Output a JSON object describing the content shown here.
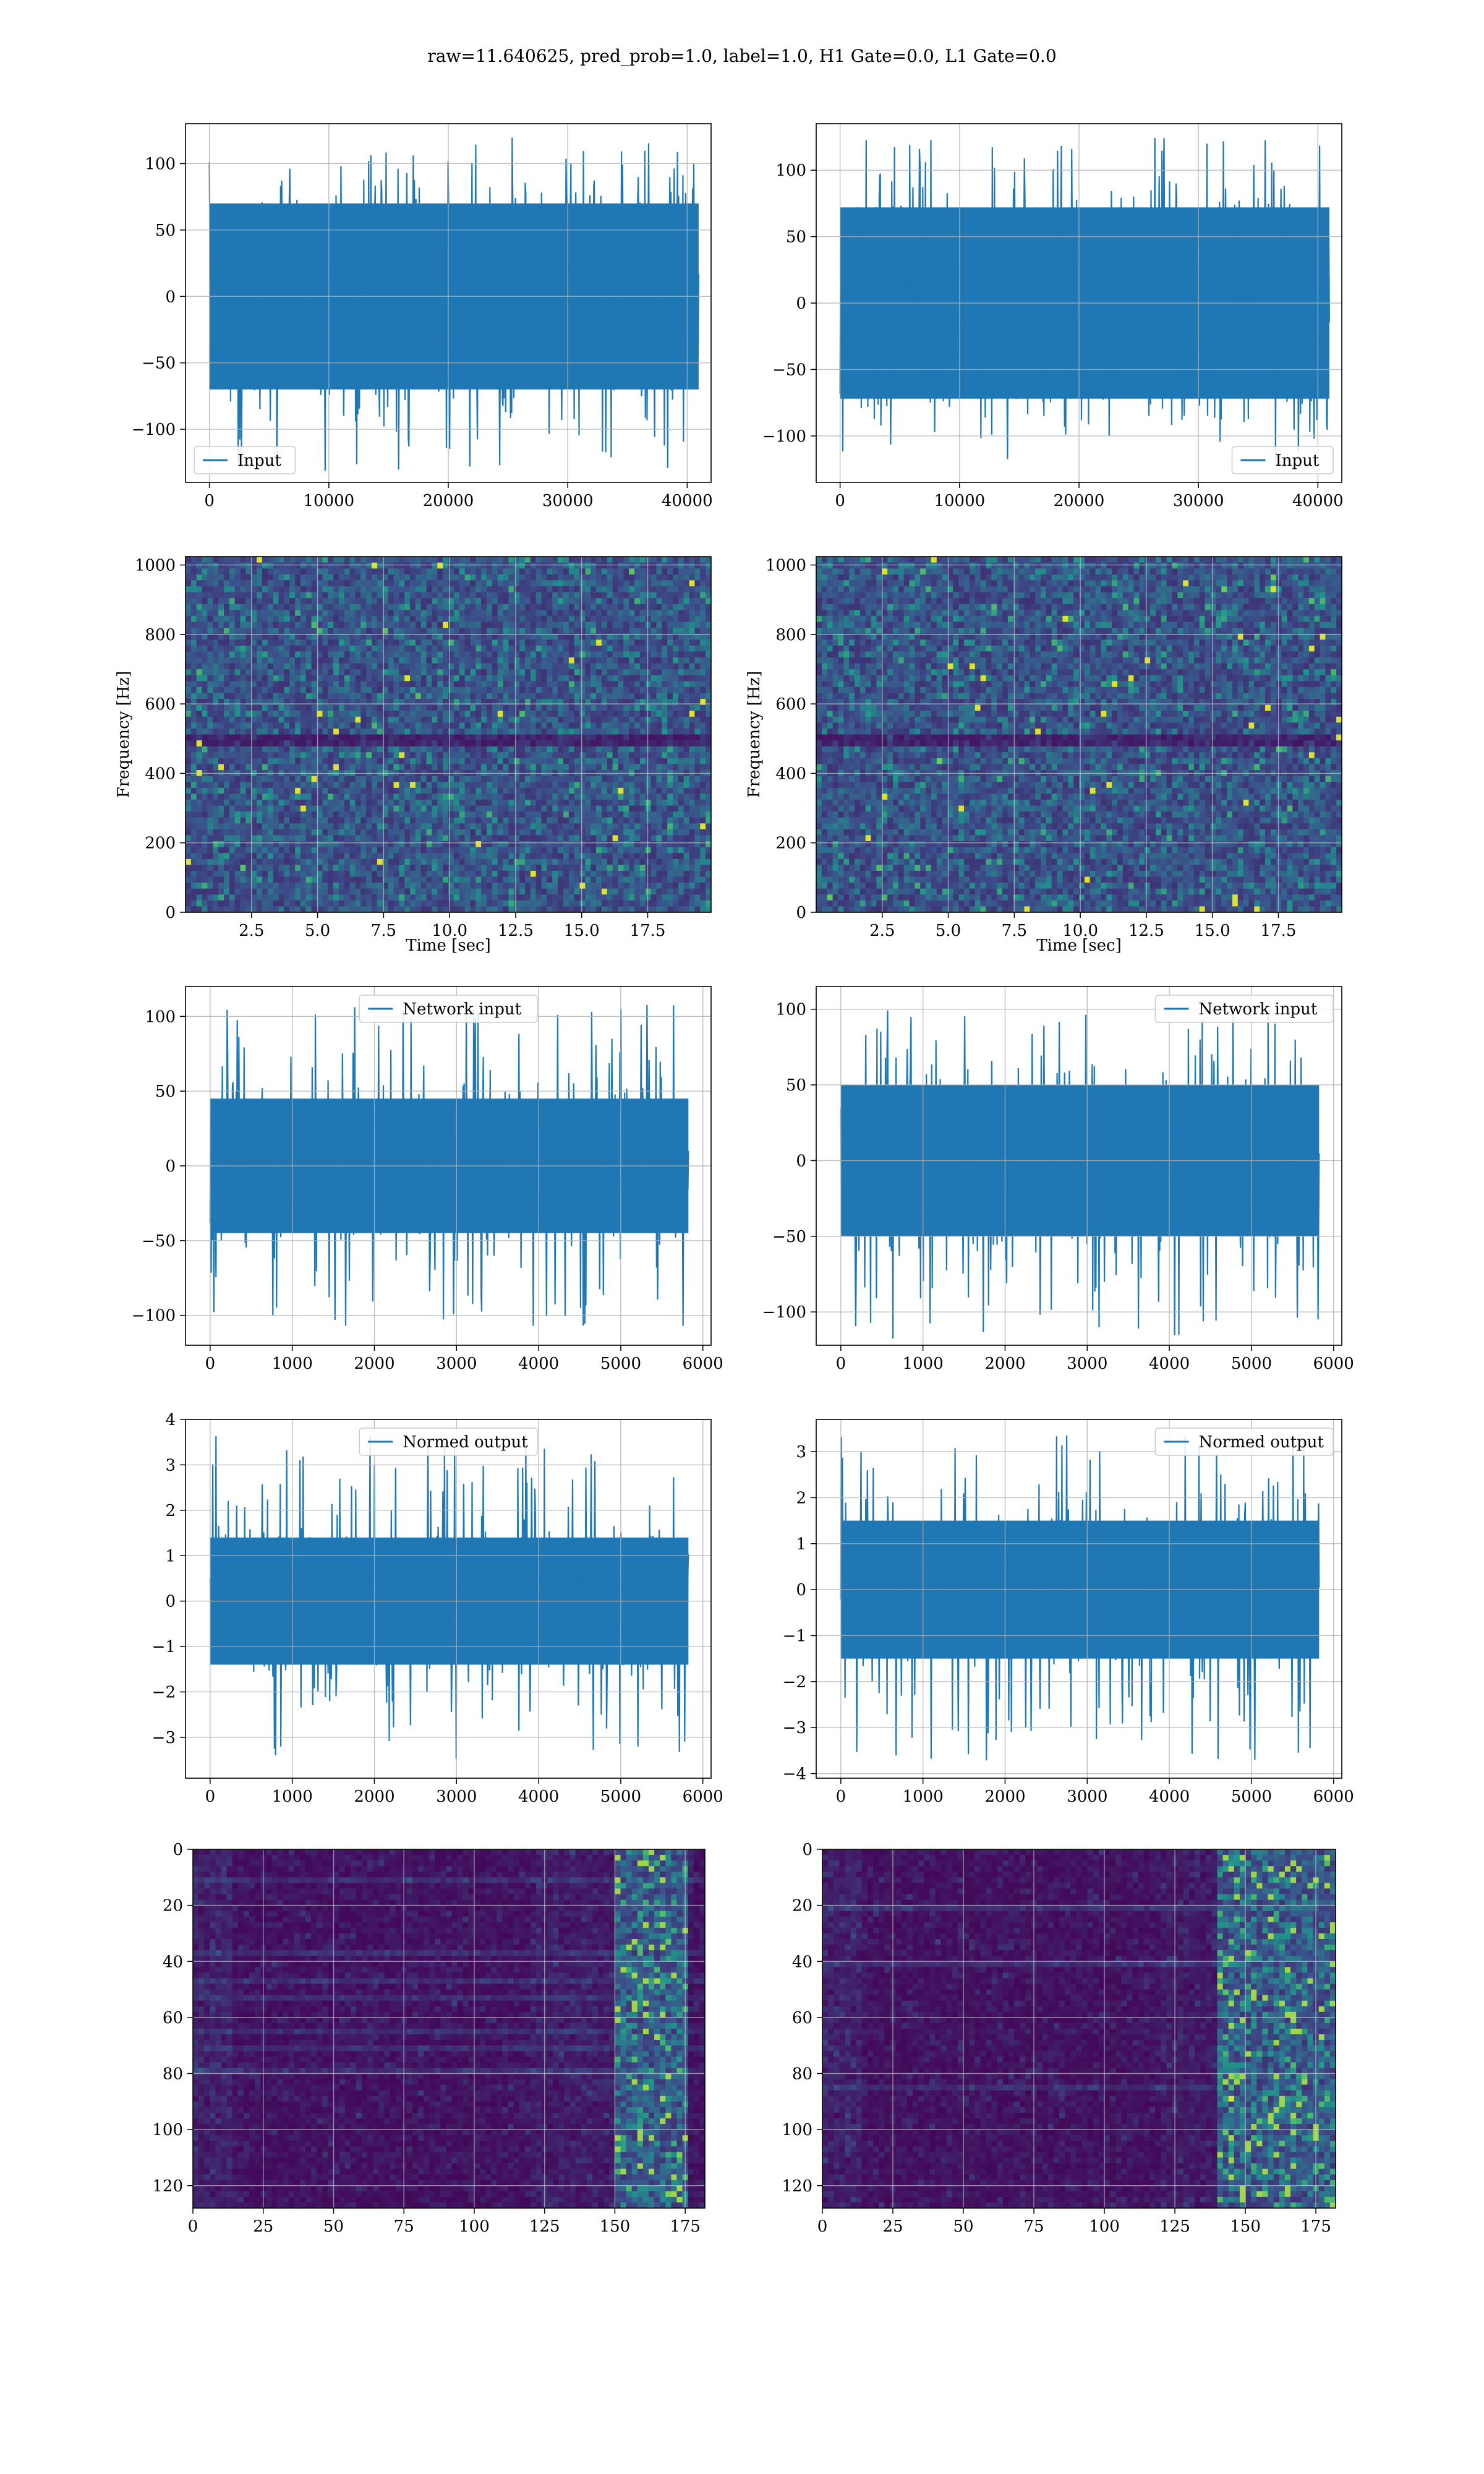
{
  "figure": {
    "suptitle": "raw=11.640625, pred_prob=1.0, label=1.0, H1 Gate=0.0, L1 Gate=0.0"
  },
  "colors": {
    "series": "#1f77b4",
    "axes_edge": "#000000",
    "grid": "#b0b0b0",
    "viridis_dark": "#440154",
    "viridis_mid": "#21918c",
    "viridis_bright": "#fde725"
  },
  "chart_data": [
    {
      "id": "h1-input",
      "type": "line",
      "panel": "row1-left",
      "legend": {
        "label": "Input",
        "loc": "lower left"
      },
      "xlim": [
        -2000,
        42000
      ],
      "ylim": [
        -140,
        130
      ],
      "xticks": [
        0,
        10000,
        20000,
        30000,
        40000
      ],
      "xticklabels": [
        "0",
        "10000",
        "20000",
        "30000",
        "40000"
      ],
      "yticks": [
        -100,
        -50,
        0,
        50,
        100
      ],
      "yticklabels": [
        "−100",
        "−50",
        "0",
        "50",
        "100"
      ],
      "series": [
        {
          "x_range": [
            0,
            40960
          ],
          "core_band": [
            -70,
            70
          ],
          "peak_range": [
            -132,
            120
          ]
        }
      ],
      "grid": true
    },
    {
      "id": "l1-input",
      "type": "line",
      "panel": "row1-right",
      "legend": {
        "label": "Input",
        "loc": "lower right"
      },
      "xlim": [
        -2000,
        42000
      ],
      "ylim": [
        -135,
        135
      ],
      "xticks": [
        0,
        10000,
        20000,
        30000,
        40000
      ],
      "xticklabels": [
        "0",
        "10000",
        "20000",
        "30000",
        "40000"
      ],
      "yticks": [
        -100,
        -50,
        0,
        50,
        100
      ],
      "yticklabels": [
        "−100",
        "−50",
        "0",
        "50",
        "100"
      ],
      "series": [
        {
          "x_range": [
            0,
            40960
          ],
          "core_band": [
            -72,
            72
          ],
          "peak_range": [
            -120,
            125
          ]
        }
      ],
      "grid": true
    },
    {
      "id": "h1-spectrogram",
      "type": "heatmap",
      "panel": "row2-left",
      "xlabel": "Time [sec]",
      "ylabel": "Frequency [Hz]",
      "xlim": [
        0,
        19.9
      ],
      "ylim": [
        0,
        1024
      ],
      "xticks": [
        2.5,
        5.0,
        7.5,
        10.0,
        12.5,
        15.0,
        17.5
      ],
      "xticklabels": [
        "2.5",
        "5.0",
        "7.5",
        "10.0",
        "12.5",
        "15.0",
        "17.5"
      ],
      "yticks": [
        0,
        200,
        400,
        600,
        800,
        1000
      ],
      "yticklabels": [
        "0",
        "200",
        "400",
        "600",
        "800",
        "1000"
      ],
      "colormap": "viridis",
      "dark_band_hz": 500,
      "grid": true
    },
    {
      "id": "l1-spectrogram",
      "type": "heatmap",
      "panel": "row2-right",
      "xlabel": "Time [sec]",
      "ylabel": "Frequency [Hz]",
      "xlim": [
        0,
        19.9
      ],
      "ylim": [
        0,
        1024
      ],
      "xticks": [
        2.5,
        5.0,
        7.5,
        10.0,
        12.5,
        15.0,
        17.5
      ],
      "xticklabels": [
        "2.5",
        "5.0",
        "7.5",
        "10.0",
        "12.5",
        "15.0",
        "17.5"
      ],
      "yticks": [
        0,
        200,
        400,
        600,
        800,
        1000
      ],
      "yticklabels": [
        "0",
        "200",
        "400",
        "600",
        "800",
        "1000"
      ],
      "colormap": "viridis",
      "dark_band_hz": 500,
      "grid": true
    },
    {
      "id": "h1-network-input",
      "type": "line",
      "panel": "row3-left",
      "legend": {
        "label": "Network input",
        "loc": "upper center"
      },
      "xlim": [
        -300,
        6100
      ],
      "ylim": [
        -120,
        120
      ],
      "xticks": [
        0,
        1000,
        2000,
        3000,
        4000,
        5000,
        6000
      ],
      "xticklabels": [
        "0",
        "1000",
        "2000",
        "3000",
        "4000",
        "5000",
        "6000"
      ],
      "yticks": [
        -100,
        -50,
        0,
        50,
        100
      ],
      "yticklabels": [
        "−100",
        "−50",
        "0",
        "50",
        "100"
      ],
      "series": [
        {
          "x_range": [
            0,
            5824
          ],
          "core_band": [
            -45,
            45
          ],
          "peak_range": [
            -108,
            108
          ]
        }
      ],
      "grid": true
    },
    {
      "id": "l1-network-input",
      "type": "line",
      "panel": "row3-right",
      "legend": {
        "label": "Network input",
        "loc": "upper right"
      },
      "xlim": [
        -300,
        6100
      ],
      "ylim": [
        -122,
        115
      ],
      "xticks": [
        0,
        1000,
        2000,
        3000,
        4000,
        5000,
        6000
      ],
      "xticklabels": [
        "0",
        "1000",
        "2000",
        "3000",
        "4000",
        "5000",
        "6000"
      ],
      "yticks": [
        -100,
        -50,
        0,
        50,
        100
      ],
      "yticklabels": [
        "−100",
        "−50",
        "0",
        "50",
        "100"
      ],
      "series": [
        {
          "x_range": [
            0,
            5824
          ],
          "core_band": [
            -50,
            50
          ],
          "peak_range": [
            -118,
            105
          ]
        }
      ],
      "grid": true
    },
    {
      "id": "h1-normed-output",
      "type": "line",
      "panel": "row4-left",
      "legend": {
        "label": "Normed output",
        "loc": "upper center"
      },
      "xlim": [
        -300,
        6100
      ],
      "ylim": [
        -3.9,
        4.0
      ],
      "xticks": [
        0,
        1000,
        2000,
        3000,
        4000,
        5000,
        6000
      ],
      "xticklabels": [
        "0",
        "1000",
        "2000",
        "3000",
        "4000",
        "5000",
        "6000"
      ],
      "yticks": [
        -3,
        -2,
        -1,
        0,
        1,
        2,
        3,
        4
      ],
      "yticklabels": [
        "−3",
        "−2",
        "−1",
        "0",
        "1",
        "2",
        "3",
        "4"
      ],
      "series": [
        {
          "x_range": [
            0,
            5824
          ],
          "core_band": [
            -1.4,
            1.4
          ],
          "peak_range": [
            -3.5,
            3.7
          ]
        }
      ],
      "grid": true
    },
    {
      "id": "l1-normed-output",
      "type": "line",
      "panel": "row4-right",
      "legend": {
        "label": "Normed output",
        "loc": "upper right"
      },
      "xlim": [
        -300,
        6100
      ],
      "ylim": [
        -4.1,
        3.7
      ],
      "xticks": [
        0,
        1000,
        2000,
        3000,
        4000,
        5000,
        6000
      ],
      "xticklabels": [
        "0",
        "1000",
        "2000",
        "3000",
        "4000",
        "5000",
        "6000"
      ],
      "yticks": [
        -4,
        -3,
        -2,
        -1,
        0,
        1,
        2,
        3
      ],
      "yticklabels": [
        "−4",
        "−3",
        "−2",
        "−1",
        "0",
        "1",
        "2",
        "3"
      ],
      "series": [
        {
          "x_range": [
            0,
            5824
          ],
          "core_band": [
            -1.5,
            1.5
          ],
          "peak_range": [
            -3.8,
            3.4
          ]
        }
      ],
      "grid": true
    },
    {
      "id": "h1-feature-map",
      "type": "heatmap",
      "panel": "row5-left",
      "xlim": [
        0,
        182
      ],
      "ylim": [
        128,
        0
      ],
      "xticks": [
        0,
        25,
        50,
        75,
        100,
        125,
        150,
        175
      ],
      "xticklabels": [
        "0",
        "25",
        "50",
        "75",
        "100",
        "125",
        "150",
        "175"
      ],
      "yticks": [
        0,
        20,
        40,
        60,
        80,
        100,
        120
      ],
      "yticklabels": [
        "0",
        "20",
        "40",
        "60",
        "80",
        "100",
        "120"
      ],
      "colormap": "viridis",
      "bright_columns": [
        150,
        175
      ],
      "grid": true
    },
    {
      "id": "l1-feature-map",
      "type": "heatmap",
      "panel": "row5-right",
      "xlim": [
        0,
        182
      ],
      "ylim": [
        128,
        0
      ],
      "xticks": [
        0,
        25,
        50,
        75,
        100,
        125,
        150,
        175
      ],
      "xticklabels": [
        "0",
        "25",
        "50",
        "75",
        "100",
        "125",
        "150",
        "175"
      ],
      "yticks": [
        0,
        20,
        40,
        60,
        80,
        100,
        120
      ],
      "yticklabels": [
        "0",
        "20",
        "40",
        "60",
        "80",
        "100",
        "120"
      ],
      "colormap": "viridis",
      "bright_columns": [
        140,
        182
      ],
      "grid": true
    }
  ]
}
